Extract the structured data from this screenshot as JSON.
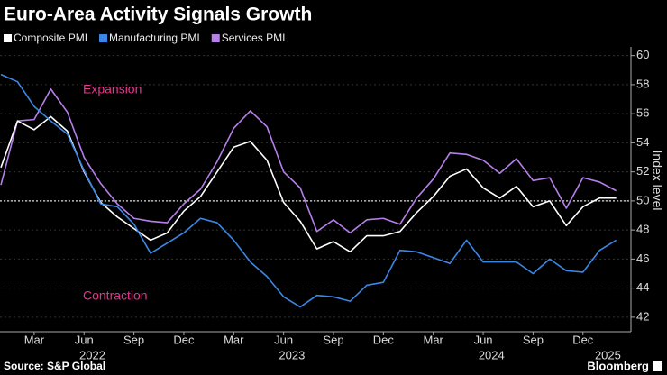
{
  "chart_data": {
    "type": "line",
    "title": "Euro-Area Activity Signals Growth",
    "y_label": "Index level",
    "source": "Source: S&P Global",
    "brand": "Bloomberg",
    "annotations": [
      "Expansion",
      "Contraction"
    ],
    "annotation_color": "#e8358f",
    "categories": [
      null,
      null,
      "Mar",
      null,
      null,
      "Jun",
      null,
      null,
      "Sep",
      null,
      null,
      "Dec",
      null,
      null,
      "Mar",
      null,
      null,
      "Jun",
      null,
      null,
      "Sep",
      null,
      null,
      "Dec",
      null,
      null,
      "Mar",
      null,
      null,
      "Jun",
      null,
      null,
      "Sep",
      null,
      null,
      "Dec",
      null,
      null
    ],
    "years": [
      "2022",
      "2023",
      "2024",
      "2025"
    ],
    "series": [
      {
        "name": "Composite PMI",
        "color": "#ffffff",
        "values": [
          52.3,
          55.5,
          54.9,
          55.8,
          54.8,
          52.0,
          49.9,
          48.9,
          48.1,
          47.3,
          47.8,
          49.3,
          50.3,
          52.0,
          53.7,
          54.1,
          52.8,
          49.9,
          48.6,
          46.7,
          47.2,
          46.5,
          47.6,
          47.6,
          47.9,
          49.2,
          50.3,
          51.7,
          52.2,
          50.9,
          50.2,
          51.0,
          49.6,
          50.0,
          48.3,
          49.6,
          50.2,
          50.2
        ]
      },
      {
        "name": "Manufacturing PMI",
        "color": "#3b87e6",
        "values": [
          58.7,
          58.2,
          56.5,
          55.5,
          54.6,
          52.1,
          49.8,
          49.6,
          48.4,
          46.4,
          47.1,
          47.8,
          48.8,
          48.5,
          47.3,
          45.8,
          44.8,
          43.4,
          42.7,
          43.5,
          43.4,
          43.1,
          44.2,
          44.4,
          46.6,
          46.5,
          46.1,
          45.7,
          47.3,
          45.8,
          45.8,
          45.8,
          45.0,
          46.0,
          45.2,
          45.1,
          46.6,
          47.3
        ]
      },
      {
        "name": "Services PMI",
        "color": "#b77fea",
        "values": [
          51.1,
          55.5,
          55.6,
          57.7,
          56.1,
          53.0,
          51.2,
          49.8,
          48.8,
          48.6,
          48.5,
          49.8,
          50.8,
          52.7,
          55.0,
          56.2,
          55.1,
          52.0,
          50.9,
          47.9,
          48.7,
          47.8,
          48.7,
          48.8,
          48.4,
          50.2,
          51.5,
          53.3,
          53.2,
          52.8,
          51.9,
          52.9,
          51.4,
          51.6,
          49.5,
          51.6,
          51.3,
          50.7
        ]
      }
    ],
    "reference_line": 50,
    "ylim": [
      41,
      60.6
    ],
    "yticks": [
      42,
      44,
      46,
      48,
      50,
      52,
      54,
      56,
      58,
      60
    ],
    "grid": true
  }
}
